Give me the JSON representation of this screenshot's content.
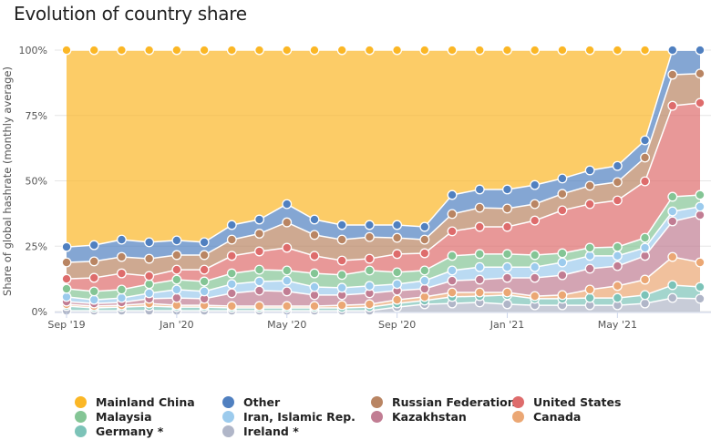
{
  "title": "Evolution of country share",
  "chart_data": {
    "type": "area",
    "stacked": true,
    "title": "Evolution of country share",
    "xlabel": "",
    "ylabel": "Share of global hashrate (monthly average)",
    "ylim": [
      0,
      100
    ],
    "y_ticks": [
      "0%",
      "25%",
      "50%",
      "75%",
      "100%"
    ],
    "y_tick_values": [
      0,
      25,
      50,
      75,
      100
    ],
    "x_tick_labels": [
      "Sep '19",
      "Jan '20",
      "May '20",
      "Sep '20",
      "Jan '21",
      "May '21"
    ],
    "x_tick_indices": [
      0,
      4,
      8,
      12,
      16,
      20
    ],
    "x": [
      "Sep '19",
      "Oct '19",
      "Nov '19",
      "Dec '19",
      "Jan '20",
      "Feb '20",
      "Mar '20",
      "Apr '20",
      "May '20",
      "Jun '20",
      "Jul '20",
      "Aug '20",
      "Sep '20",
      "Oct '20",
      "Nov '20",
      "Dec '20",
      "Jan '21",
      "Feb '21",
      "Mar '21",
      "Apr '21",
      "May '21",
      "Jun '21",
      "Jul '21",
      "Aug '21"
    ],
    "grid": true,
    "legend_position": "bottom",
    "series": [
      {
        "name": "Ireland *",
        "color": "#b0b6c8",
        "values": [
          0.3,
          0.3,
          0.3,
          0.3,
          0.3,
          0.3,
          0.3,
          0.3,
          0.3,
          0.3,
          0.3,
          0.3,
          1.7,
          2.8,
          3.1,
          3.5,
          2.8,
          2.4,
          2.4,
          2.4,
          2.4,
          3.1,
          5.2,
          4.9
        ]
      },
      {
        "name": "Germany *",
        "color": "#7cc3b8",
        "values": [
          1.8,
          1.1,
          1.4,
          1.8,
          1.4,
          1.4,
          1.1,
          1.1,
          1.1,
          1.1,
          1.1,
          1.4,
          1.4,
          1.4,
          2.5,
          2.4,
          3.5,
          2.5,
          2.5,
          2.8,
          2.8,
          3.2,
          4.9,
          4.5
        ]
      },
      {
        "name": "Canada",
        "color": "#eba774",
        "values": [
          0.7,
          0.7,
          0.7,
          1.0,
          0.7,
          0.7,
          0.7,
          0.7,
          0.7,
          0.7,
          1.0,
          1.1,
          1.4,
          1.4,
          1.7,
          1.4,
          1.0,
          1.0,
          1.4,
          3.2,
          4.6,
          5.9,
          10.8,
          9.4
        ]
      },
      {
        "name": "Kazakhstan",
        "color": "#c17d93",
        "values": [
          1.0,
          1.0,
          1.1,
          1.8,
          2.8,
          2.5,
          4.9,
          5.9,
          5.6,
          4.2,
          3.9,
          4.2,
          3.5,
          3.1,
          4.5,
          4.9,
          5.6,
          7.0,
          7.6,
          8.0,
          7.6,
          9.1,
          13.6,
          18.1
        ]
      },
      {
        "name": "Iran, Islamic Rep.",
        "color": "#9ccbed",
        "values": [
          1.8,
          1.4,
          1.7,
          2.1,
          3.2,
          2.8,
          3.5,
          3.5,
          4.1,
          3.1,
          2.8,
          2.8,
          2.5,
          3.1,
          3.9,
          4.8,
          4.1,
          4.1,
          4.9,
          4.9,
          3.9,
          3.1,
          3.8,
          3.2
        ]
      },
      {
        "name": "Malaysia",
        "color": "#84c595",
        "values": [
          3.1,
          3.2,
          3.2,
          3.5,
          3.8,
          3.8,
          4.1,
          4.5,
          3.9,
          5.2,
          4.9,
          5.9,
          4.5,
          3.9,
          5.6,
          5.0,
          5.0,
          4.6,
          3.5,
          3.1,
          3.4,
          3.8,
          5.6,
          4.5
        ]
      },
      {
        "name": "United States",
        "color": "#de6c6c",
        "values": [
          3.8,
          5.2,
          6.2,
          3.1,
          3.8,
          4.5,
          6.7,
          7.0,
          8.7,
          6.7,
          5.5,
          4.5,
          7.0,
          6.6,
          9.4,
          10.4,
          10.4,
          13.2,
          16.4,
          16.7,
          17.8,
          21.6,
          34.8,
          35.2
        ]
      },
      {
        "name": "Russian Federation",
        "color": "#b98563",
        "values": [
          6.3,
          6.3,
          6.3,
          6.6,
          5.6,
          5.6,
          6.2,
          6.8,
          9.7,
          8.0,
          8.0,
          8.3,
          6.2,
          5.2,
          6.6,
          7.3,
          7.0,
          6.3,
          6.3,
          7.0,
          7.0,
          9.1,
          11.9,
          11.2
        ]
      },
      {
        "name": "Other",
        "color": "#5080c0",
        "values": [
          5.9,
          6.2,
          6.6,
          6.3,
          5.6,
          4.9,
          5.6,
          5.4,
          7.0,
          5.9,
          5.6,
          4.6,
          4.9,
          4.9,
          7.3,
          7.0,
          7.3,
          7.3,
          5.9,
          5.9,
          6.2,
          6.6,
          9.4,
          9.0
        ]
      },
      {
        "name": "Mainland China",
        "color": "#fbb726",
        "values": [
          75.3,
          74.6,
          72.5,
          73.5,
          72.8,
          73.5,
          66.9,
          64.8,
          58.9,
          64.8,
          66.9,
          66.9,
          66.9,
          67.6,
          55.4,
          53.3,
          53.3,
          51.6,
          49.1,
          46.0,
          44.3,
          34.5,
          0,
          0
        ]
      }
    ]
  },
  "legend": [
    {
      "name": "Mainland China",
      "color": "#fbb726"
    },
    {
      "name": "Other",
      "color": "#5080c0"
    },
    {
      "name": "Russian Federation",
      "color": "#b98563"
    },
    {
      "name": "United States",
      "color": "#de6c6c"
    },
    {
      "name": "Malaysia",
      "color": "#84c595"
    },
    {
      "name": "Iran, Islamic Rep.",
      "color": "#9ccbed"
    },
    {
      "name": "Kazakhstan",
      "color": "#c17d93"
    },
    {
      "name": "Canada",
      "color": "#eba774"
    },
    {
      "name": "Germany *",
      "color": "#7cc3b8"
    },
    {
      "name": "Ireland *",
      "color": "#b0b6c8"
    }
  ]
}
